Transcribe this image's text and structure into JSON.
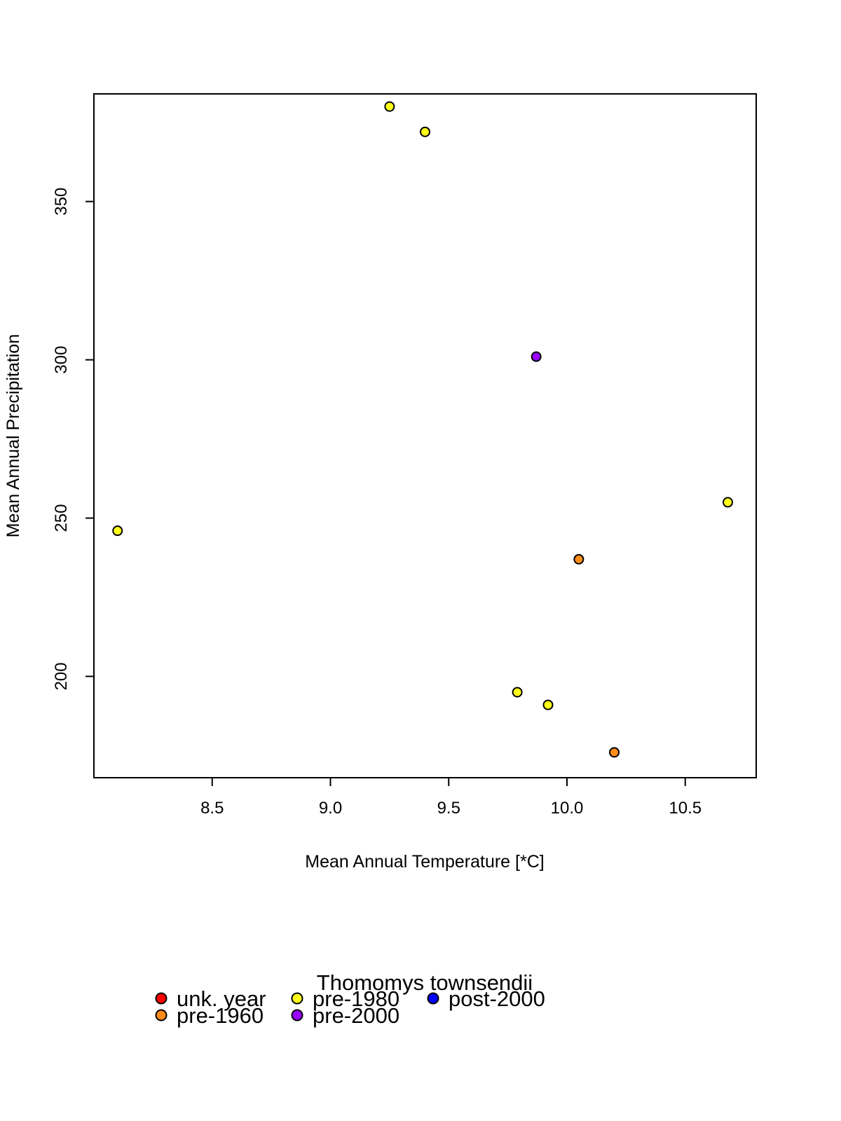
{
  "chart_data": {
    "type": "scatter",
    "title": "",
    "xlabel": "Mean Annual Temperature [*C]",
    "ylabel": "Mean Annual Precipitation",
    "xlim": [
      8.0,
      10.8
    ],
    "ylim": [
      168,
      384
    ],
    "xticks": [
      8.5,
      9.0,
      9.5,
      10.0,
      10.5
    ],
    "xtick_labels": [
      "8.5",
      "9.0",
      "9.5",
      "10.0",
      "10.5"
    ],
    "yticks": [
      200,
      250,
      300,
      350
    ],
    "ytick_labels": [
      "200",
      "250",
      "300",
      "350"
    ],
    "grid": false,
    "legend": {
      "title": "Thomomys townsendii",
      "placement": "bottom",
      "entries": [
        {
          "label": "unk. year",
          "color": "#ff0000"
        },
        {
          "label": "pre-1960",
          "color": "#ff8c1a"
        },
        {
          "label": "pre-1980",
          "color": "#ffff1a"
        },
        {
          "label": "pre-2000",
          "color": "#9900ff"
        },
        {
          "label": "post-2000",
          "color": "#0000ff"
        }
      ]
    },
    "series": [
      {
        "name": "unk. year",
        "color": "#ff0000",
        "points": []
      },
      {
        "name": "pre-1960",
        "color": "#ff8c1a",
        "points": [
          {
            "x": 10.05,
            "y": 237
          },
          {
            "x": 10.2,
            "y": 176
          }
        ]
      },
      {
        "name": "pre-1980",
        "color": "#ffff1a",
        "points": [
          {
            "x": 9.25,
            "y": 380
          },
          {
            "x": 9.4,
            "y": 372
          },
          {
            "x": 8.1,
            "y": 246
          },
          {
            "x": 10.68,
            "y": 255
          },
          {
            "x": 9.79,
            "y": 195
          },
          {
            "x": 9.92,
            "y": 191
          }
        ]
      },
      {
        "name": "pre-2000",
        "color": "#9900ff",
        "points": [
          {
            "x": 9.87,
            "y": 301
          }
        ]
      },
      {
        "name": "post-2000",
        "color": "#0000ff",
        "points": []
      }
    ]
  }
}
